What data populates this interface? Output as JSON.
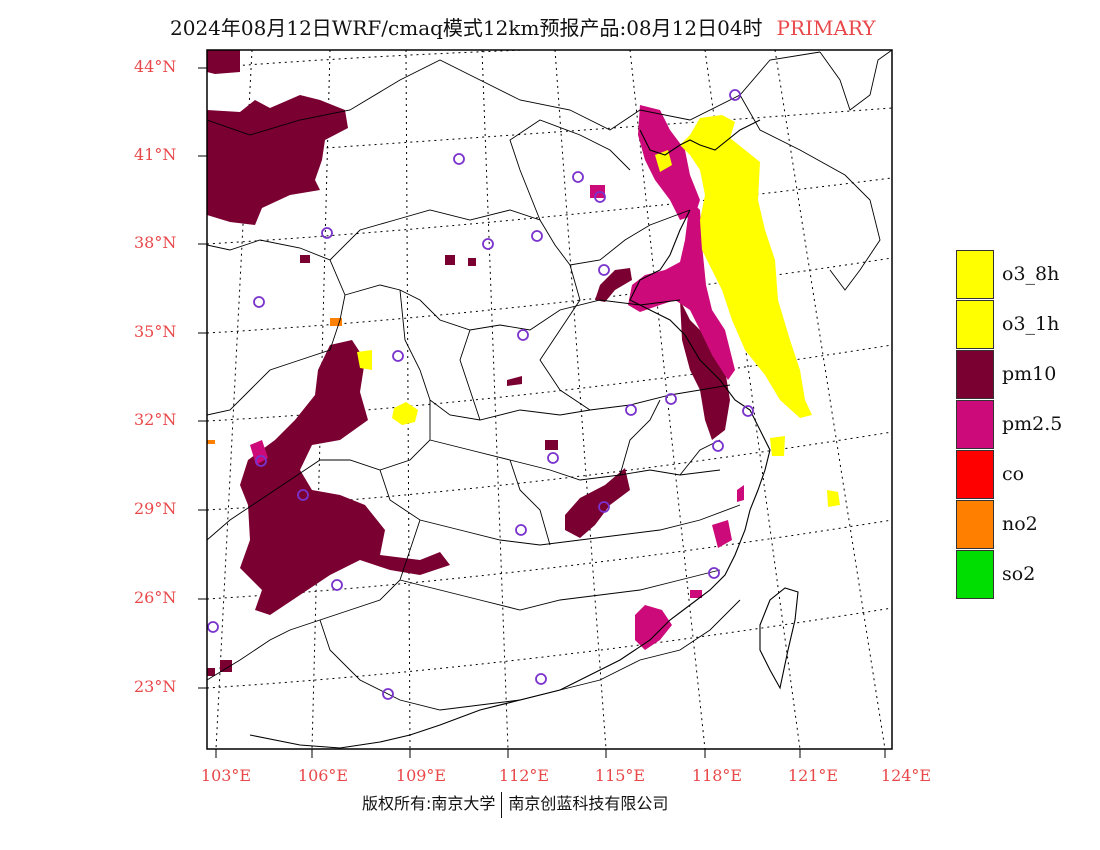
{
  "title": {
    "main": "2024年08月12日WRF/cmaq模式12km预报产品:08月12日04时",
    "tag": "PRIMARY"
  },
  "lat_labels": [
    "44°N",
    "41°N",
    "38°N",
    "35°N",
    "32°N",
    "29°N",
    "26°N",
    "23°N"
  ],
  "lon_labels": [
    "103°E",
    "106°E",
    "109°E",
    "112°E",
    "115°E",
    "118°E",
    "121°E",
    "124°E"
  ],
  "legend": [
    {
      "label": "o3_8h",
      "color": "#ffff00"
    },
    {
      "label": "o3_1h",
      "color": "#ffff00"
    },
    {
      "label": "pm10",
      "color": "#7a0032"
    },
    {
      "label": "pm2.5",
      "color": "#cc0a7a"
    },
    {
      "label": "co",
      "color": "#ff0000"
    },
    {
      "label": "no2",
      "color": "#ff7f00"
    },
    {
      "label": "so2",
      "color": "#00dd00"
    }
  ],
  "footer": {
    "left": "版权所有:南京大学",
    "right": "南京创蓝科技有限公司"
  },
  "colors": {
    "label_red": "#e8484a",
    "station": "#7a33cc"
  }
}
